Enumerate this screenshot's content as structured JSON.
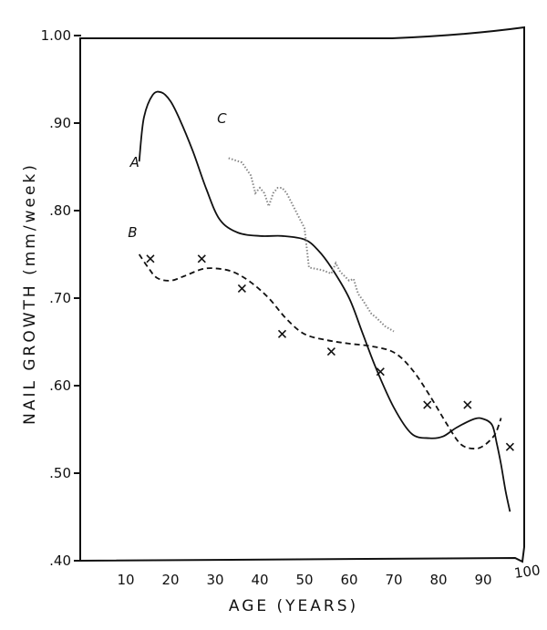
{
  "chart_data": {
    "type": "line",
    "title": "",
    "xlabel": "AGE (YEARS)",
    "ylabel": "NAIL GROWTH (mm/week)",
    "xlim": [
      0,
      100
    ],
    "ylim": [
      0.4,
      1.0
    ],
    "x_ticks": [
      10,
      20,
      30,
      40,
      50,
      60,
      70,
      80,
      90,
      100
    ],
    "x_tick_labels": [
      "10",
      "20",
      "30",
      "40",
      "50",
      "60",
      "70",
      "80",
      "90",
      "100"
    ],
    "y_ticks": [
      0.4,
      0.5,
      0.6,
      0.7,
      0.8,
      0.9,
      1.0
    ],
    "y_tick_labels": [
      ".40",
      ".50",
      ".60",
      ".70",
      ".80",
      ".90",
      "1.00"
    ],
    "grid": false,
    "series": [
      {
        "name": "A",
        "style": "solid",
        "color": "#111111",
        "x": [
          13,
          14,
          16,
          18,
          20,
          22,
          25,
          28,
          31,
          35,
          40,
          45,
          50,
          53,
          56,
          60,
          63,
          66,
          70,
          74,
          78,
          81,
          84,
          88,
          90,
          92,
          93,
          94,
          95,
          96
        ],
        "y": [
          0.856,
          0.905,
          0.932,
          0.935,
          0.925,
          0.905,
          0.868,
          0.825,
          0.79,
          0.775,
          0.771,
          0.771,
          0.767,
          0.755,
          0.735,
          0.7,
          0.66,
          0.62,
          0.575,
          0.545,
          0.54,
          0.542,
          0.552,
          0.562,
          0.562,
          0.555,
          0.535,
          0.51,
          0.48,
          0.456
        ]
      },
      {
        "name": "B",
        "style": "dashed",
        "color": "#111111",
        "x": [
          13,
          15,
          17,
          20,
          23,
          27,
          30,
          34,
          38,
          42,
          46,
          50,
          55,
          60,
          65,
          70,
          74,
          78,
          82,
          85,
          88,
          90,
          92,
          93,
          94
        ],
        "y": [
          0.75,
          0.735,
          0.723,
          0.72,
          0.725,
          0.733,
          0.734,
          0.73,
          0.718,
          0.7,
          0.676,
          0.659,
          0.652,
          0.648,
          0.645,
          0.638,
          0.619,
          0.589,
          0.555,
          0.533,
          0.528,
          0.531,
          0.54,
          0.548,
          0.563
        ]
      },
      {
        "name": "C",
        "style": "dotted",
        "color": "#888888",
        "x": [
          33,
          36,
          38,
          39,
          40,
          41,
          42,
          43,
          44,
          45,
          46,
          47,
          48,
          50,
          51,
          54,
          56,
          57,
          58,
          60,
          61,
          62,
          63,
          65,
          66,
          68,
          70
        ],
        "y": [
          0.86,
          0.855,
          0.84,
          0.82,
          0.826,
          0.82,
          0.805,
          0.82,
          0.826,
          0.826,
          0.82,
          0.81,
          0.8,
          0.78,
          0.735,
          0.732,
          0.728,
          0.74,
          0.73,
          0.72,
          0.722,
          0.705,
          0.698,
          0.682,
          0.678,
          0.668,
          0.662
        ]
      }
    ],
    "points": {
      "name": "B",
      "marker": "x",
      "x": [
        15.5,
        27,
        36,
        45,
        56,
        67,
        77.5,
        86.5,
        96
      ],
      "y": [
        0.745,
        0.745,
        0.711,
        0.659,
        0.639,
        0.616,
        0.578,
        0.578,
        0.53
      ]
    },
    "curve_labels": [
      {
        "text": "A",
        "x": 12,
        "y": 0.85
      },
      {
        "text": "B",
        "x": 11.5,
        "y": 0.77
      },
      {
        "text": "C",
        "x": 31.5,
        "y": 0.9
      }
    ]
  }
}
